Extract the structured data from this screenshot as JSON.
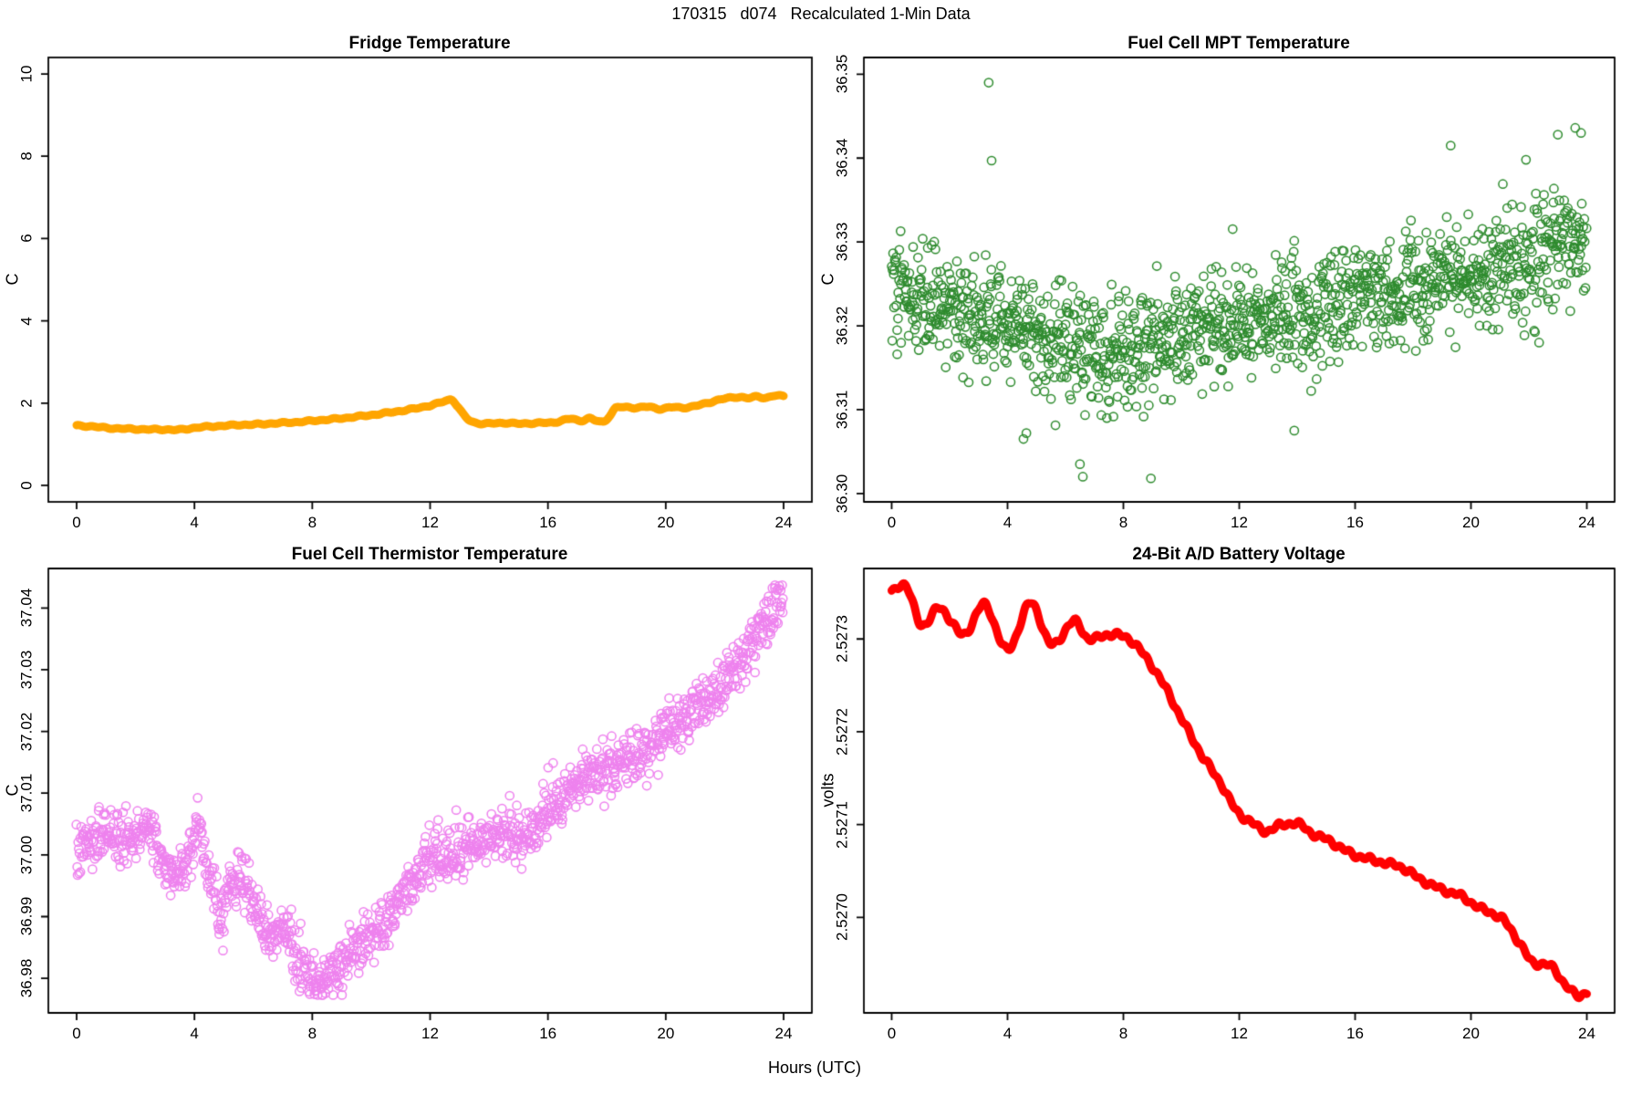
{
  "main_title": "170315   d074   Recalculated 1-Min Data",
  "x_axis_label": "Hours (UTC)",
  "axis_color": "#000000",
  "background_color": "#ffffff",
  "chart_data": [
    {
      "id": "fridge",
      "type": "line",
      "title": "Fridge Temperature",
      "ylabel": "C",
      "color": "#FFA500",
      "line_width": 9,
      "xlim": [
        0,
        24
      ],
      "ylim": [
        0,
        10
      ],
      "usr_x": [
        -0.96,
        24.96
      ],
      "usr_y": [
        -0.4,
        10.4
      ],
      "xtick_values": [
        0,
        4,
        8,
        12,
        16,
        20,
        24
      ],
      "xtick_labels": [
        "0",
        "4",
        "8",
        "12",
        "16",
        "20",
        "24"
      ],
      "ytick_values": [
        0,
        2,
        4,
        6,
        8,
        10
      ],
      "ytick_labels": [
        "0",
        "2",
        "4",
        "6",
        "8",
        "10"
      ],
      "samples_per_hour": 60,
      "wiggle": [
        [
          0.012,
          26,
          0.5
        ],
        [
          0.009,
          53,
          2.1
        ]
      ],
      "keypoints": [
        [
          0,
          1.45
        ],
        [
          0.4,
          1.44
        ],
        [
          1,
          1.4
        ],
        [
          1.5,
          1.38
        ],
        [
          2,
          1.37
        ],
        [
          2.5,
          1.36
        ],
        [
          3,
          1.36
        ],
        [
          3.4,
          1.35
        ],
        [
          3.7,
          1.37
        ],
        [
          4,
          1.4
        ],
        [
          4.5,
          1.43
        ],
        [
          5,
          1.45
        ],
        [
          5.5,
          1.47
        ],
        [
          6,
          1.48
        ],
        [
          6.5,
          1.5
        ],
        [
          7,
          1.52
        ],
        [
          7.5,
          1.54
        ],
        [
          8,
          1.57
        ],
        [
          8.5,
          1.6
        ],
        [
          9,
          1.63
        ],
        [
          9.5,
          1.67
        ],
        [
          10,
          1.71
        ],
        [
          10.5,
          1.76
        ],
        [
          11,
          1.81
        ],
        [
          11.5,
          1.87
        ],
        [
          12,
          1.94
        ],
        [
          12.3,
          2.0
        ],
        [
          12.6,
          2.07
        ],
        [
          12.75,
          2.08
        ],
        [
          12.9,
          1.95
        ],
        [
          13.1,
          1.75
        ],
        [
          13.3,
          1.6
        ],
        [
          13.5,
          1.53
        ],
        [
          13.8,
          1.5
        ],
        [
          14.2,
          1.51
        ],
        [
          14.6,
          1.52
        ],
        [
          15,
          1.5
        ],
        [
          15.4,
          1.51
        ],
        [
          15.8,
          1.52
        ],
        [
          16.2,
          1.53
        ],
        [
          16.5,
          1.58
        ],
        [
          16.8,
          1.62
        ],
        [
          17.1,
          1.57
        ],
        [
          17.4,
          1.63
        ],
        [
          17.6,
          1.58
        ],
        [
          17.9,
          1.55
        ],
        [
          18.1,
          1.7
        ],
        [
          18.3,
          1.88
        ],
        [
          18.6,
          1.9
        ],
        [
          19,
          1.89
        ],
        [
          19.4,
          1.91
        ],
        [
          19.8,
          1.86
        ],
        [
          20.2,
          1.9
        ],
        [
          20.6,
          1.89
        ],
        [
          21,
          1.93
        ],
        [
          21.4,
          2.0
        ],
        [
          21.8,
          2.08
        ],
        [
          22.2,
          2.13
        ],
        [
          22.5,
          2.15
        ],
        [
          22.8,
          2.12
        ],
        [
          23.1,
          2.16
        ],
        [
          23.4,
          2.13
        ],
        [
          23.7,
          2.18
        ],
        [
          24,
          2.17
        ]
      ]
    },
    {
      "id": "mpt",
      "type": "scatter",
      "title": "Fuel Cell MPT Temperature",
      "ylabel": "C",
      "color": "#2E8B2E",
      "marker_radius": 4.6,
      "marker_stroke": 1.5,
      "xlim": [
        0,
        24
      ],
      "ylim": [
        36.3,
        36.35
      ],
      "usr_x": [
        -0.96,
        24.96
      ],
      "usr_y": [
        36.299,
        36.352
      ],
      "xtick_values": [
        0,
        4,
        8,
        12,
        16,
        20,
        24
      ],
      "xtick_labels": [
        "0",
        "4",
        "8",
        "12",
        "16",
        "20",
        "24"
      ],
      "ytick_values": [
        36.3,
        36.31,
        36.32,
        36.33,
        36.34,
        36.35
      ],
      "ytick_labels": [
        "36.30",
        "36.31",
        "36.32",
        "36.33",
        "36.34",
        "36.35"
      ],
      "n_points": 1440,
      "noise_sd": 0.0034,
      "clip": [
        36.3013,
        36.3438
      ],
      "low_tail": {
        "x_range": [
          2,
          11
        ],
        "prob": 0.05,
        "depth": 0.0065
      },
      "seed": 42,
      "mean_curve": [
        [
          0,
          36.3245
        ],
        [
          0.5,
          36.324
        ],
        [
          1,
          36.323
        ],
        [
          1.5,
          36.3228
        ],
        [
          2,
          36.3228
        ],
        [
          2.5,
          36.3222
        ],
        [
          3,
          36.3218
        ],
        [
          3.5,
          36.3215
        ],
        [
          4,
          36.3208
        ],
        [
          4.5,
          36.32
        ],
        [
          5,
          36.319
        ],
        [
          5.5,
          36.3182
        ],
        [
          6,
          36.3178
        ],
        [
          6.5,
          36.3172
        ],
        [
          7,
          36.3168
        ],
        [
          7.5,
          36.3166
        ],
        [
          8,
          36.3166
        ],
        [
          8.5,
          36.3168
        ],
        [
          9,
          36.3172
        ],
        [
          9.5,
          36.3178
        ],
        [
          10,
          36.3186
        ],
        [
          10.5,
          36.3192
        ],
        [
          11,
          36.3196
        ],
        [
          11.5,
          36.3198
        ],
        [
          12,
          36.3202
        ],
        [
          12.5,
          36.3208
        ],
        [
          13,
          36.3212
        ],
        [
          13.5,
          36.3212
        ],
        [
          14,
          36.3212
        ],
        [
          14.5,
          36.3216
        ],
        [
          15,
          36.322
        ],
        [
          15.5,
          36.3226
        ],
        [
          16,
          36.3234
        ],
        [
          16.5,
          36.3238
        ],
        [
          17,
          36.324
        ],
        [
          17.5,
          36.3244
        ],
        [
          18,
          36.3248
        ],
        [
          18.5,
          36.3252
        ],
        [
          19,
          36.3254
        ],
        [
          19.5,
          36.3256
        ],
        [
          20,
          36.326
        ],
        [
          20.5,
          36.3264
        ],
        [
          21,
          36.3268
        ],
        [
          21.5,
          36.3272
        ],
        [
          22,
          36.328
        ],
        [
          22.5,
          36.3286
        ],
        [
          23,
          36.329
        ],
        [
          23.5,
          36.3294
        ],
        [
          24,
          36.3298
        ]
      ],
      "outliers": [
        [
          3.35,
          36.349
        ],
        [
          3.45,
          36.3397
        ],
        [
          6.5,
          36.3035
        ],
        [
          6.6,
          36.302
        ],
        [
          8.95,
          36.3018
        ],
        [
          4.55,
          36.3065
        ],
        [
          4.65,
          36.3072
        ],
        [
          13.9,
          36.3075
        ],
        [
          19.3,
          36.3415
        ],
        [
          21.9,
          36.3398
        ],
        [
          23.0,
          36.3428
        ],
        [
          23.6,
          36.3436
        ],
        [
          23.8,
          36.343
        ]
      ]
    },
    {
      "id": "thermistor",
      "type": "scatter",
      "title": "Fuel Cell Thermistor Temperature",
      "ylabel": "C",
      "color": "#EE82EE",
      "marker_radius": 4.6,
      "marker_stroke": 1.5,
      "xlim": [
        0,
        24
      ],
      "ylim": [
        36.98,
        37.04
      ],
      "usr_x": [
        -0.96,
        24.96
      ],
      "usr_y": [
        36.9744,
        37.0464
      ],
      "xtick_values": [
        0,
        4,
        8,
        12,
        16,
        20,
        24
      ],
      "xtick_labels": [
        "0",
        "4",
        "8",
        "12",
        "16",
        "20",
        "24"
      ],
      "ytick_values": [
        36.98,
        36.99,
        37.0,
        37.01,
        37.02,
        37.03,
        37.04
      ],
      "ytick_labels": [
        "36.98",
        "36.99",
        "37.00",
        "37.01",
        "37.02",
        "37.03",
        "37.04"
      ],
      "n_points": 1440,
      "noise_sd": 0.0021,
      "clip": [
        36.9773,
        37.0437
      ],
      "seed": 7,
      "mean_curve": [
        [
          0,
          37.0
        ],
        [
          0.5,
          37.002
        ],
        [
          1,
          37.004
        ],
        [
          1.5,
          37.0025
        ],
        [
          2,
          37.003
        ],
        [
          2.3,
          37.0045
        ],
        [
          2.7,
          37.0025
        ],
        [
          3,
          36.9985
        ],
        [
          3.3,
          36.9965
        ],
        [
          3.6,
          36.9975
        ],
        [
          4,
          37.003
        ],
        [
          4.15,
          37.0045
        ],
        [
          4.4,
          36.999
        ],
        [
          4.7,
          36.9935
        ],
        [
          4.9,
          36.9905
        ],
        [
          5.1,
          36.994
        ],
        [
          5.4,
          36.9955
        ],
        [
          5.6,
          36.9965
        ],
        [
          5.8,
          36.994
        ],
        [
          6,
          36.992
        ],
        [
          6.3,
          36.989
        ],
        [
          6.6,
          36.9875
        ],
        [
          7,
          36.988
        ],
        [
          7.3,
          36.985
        ],
        [
          7.6,
          36.9815
        ],
        [
          8,
          36.98
        ],
        [
          8.3,
          36.9795
        ],
        [
          8.6,
          36.98
        ],
        [
          9,
          36.982
        ],
        [
          9.5,
          36.9845
        ],
        [
          10,
          36.987
        ],
        [
          10.5,
          36.9895
        ],
        [
          11,
          36.993
        ],
        [
          11.5,
          36.9965
        ],
        [
          12,
          36.999
        ],
        [
          12.5,
          37.0
        ],
        [
          13,
          37.001
        ],
        [
          13.5,
          37.002
        ],
        [
          14,
          37.003
        ],
        [
          14.5,
          37.003
        ],
        [
          15,
          37.0035
        ],
        [
          15.5,
          37.004
        ],
        [
          16,
          37.007
        ],
        [
          16.5,
          37.009
        ],
        [
          17,
          37.011
        ],
        [
          17.5,
          37.013
        ],
        [
          18,
          37.014
        ],
        [
          18.5,
          37.0155
        ],
        [
          19,
          37.0165
        ],
        [
          19.5,
          37.018
        ],
        [
          20,
          37.02
        ],
        [
          20.5,
          37.0215
        ],
        [
          21,
          37.0235
        ],
        [
          21.5,
          37.0255
        ],
        [
          22,
          37.028
        ],
        [
          22.5,
          37.031
        ],
        [
          23,
          37.0345
        ],
        [
          23.3,
          37.037
        ],
        [
          23.6,
          37.0395
        ],
        [
          24,
          37.042
        ]
      ],
      "outliers": []
    },
    {
      "id": "battery",
      "type": "line",
      "title": "24-Bit A/D Battery Voltage",
      "ylabel": "volts",
      "color": "#FF0000",
      "line_width": 9,
      "xlim": [
        0,
        24
      ],
      "ylim": [
        2.527,
        2.5273
      ],
      "usr_x": [
        -0.96,
        24.96
      ],
      "usr_y": [
        2.526897,
        2.527376
      ],
      "xtick_values": [
        0,
        4,
        8,
        12,
        16,
        20,
        24
      ],
      "xtick_labels": [
        "0",
        "4",
        "8",
        "12",
        "16",
        "20",
        "24"
      ],
      "ytick_values": [
        2.527,
        2.5271,
        2.5272,
        2.5273
      ],
      "ytick_labels": [
        "2.5270",
        "2.5271",
        "2.5272",
        "2.5273"
      ],
      "samples_per_hour": 60,
      "wiggle": [
        [
          2e-06,
          21,
          0.3
        ],
        [
          1.6e-06,
          47,
          1.4
        ]
      ],
      "keypoints": [
        [
          0,
          2.52735
        ],
        [
          0.5,
          2.527358
        ],
        [
          1.0,
          2.527315
        ],
        [
          1.6,
          2.527333
        ],
        [
          2.0,
          2.527322
        ],
        [
          2.5,
          2.527304
        ],
        [
          3.2,
          2.527337
        ],
        [
          4.0,
          2.527288
        ],
        [
          4.8,
          2.527339
        ],
        [
          5.5,
          2.527294
        ],
        [
          6.3,
          2.527319
        ],
        [
          6.8,
          2.5273
        ],
        [
          7.5,
          2.527305
        ],
        [
          8.2,
          2.5273
        ],
        [
          8.8,
          2.527279
        ],
        [
          9.4,
          2.52725
        ],
        [
          10.1,
          2.527209
        ],
        [
          10.7,
          2.527175
        ],
        [
          11.4,
          2.527143
        ],
        [
          11.9,
          2.527115
        ],
        [
          12.4,
          2.527103
        ],
        [
          12.9,
          2.527093
        ],
        [
          13.4,
          2.527099
        ],
        [
          14.0,
          2.527101
        ],
        [
          14.6,
          2.527089
        ],
        [
          15.1,
          2.527083
        ],
        [
          15.6,
          2.527073
        ],
        [
          16.1,
          2.527066
        ],
        [
          16.6,
          2.527062
        ],
        [
          17.1,
          2.527058
        ],
        [
          17.6,
          2.527054
        ],
        [
          18.25,
          2.527041
        ],
        [
          19.0,
          2.52703
        ],
        [
          19.65,
          2.527023
        ],
        [
          20.3,
          2.52701
        ],
        [
          21.1,
          2.526998
        ],
        [
          21.7,
          2.526972
        ],
        [
          22.1,
          2.526952
        ],
        [
          22.45,
          2.52695
        ],
        [
          22.8,
          2.526946
        ],
        [
          23.25,
          2.526928
        ],
        [
          23.7,
          2.526915
        ],
        [
          24,
          2.52692
        ]
      ]
    }
  ]
}
